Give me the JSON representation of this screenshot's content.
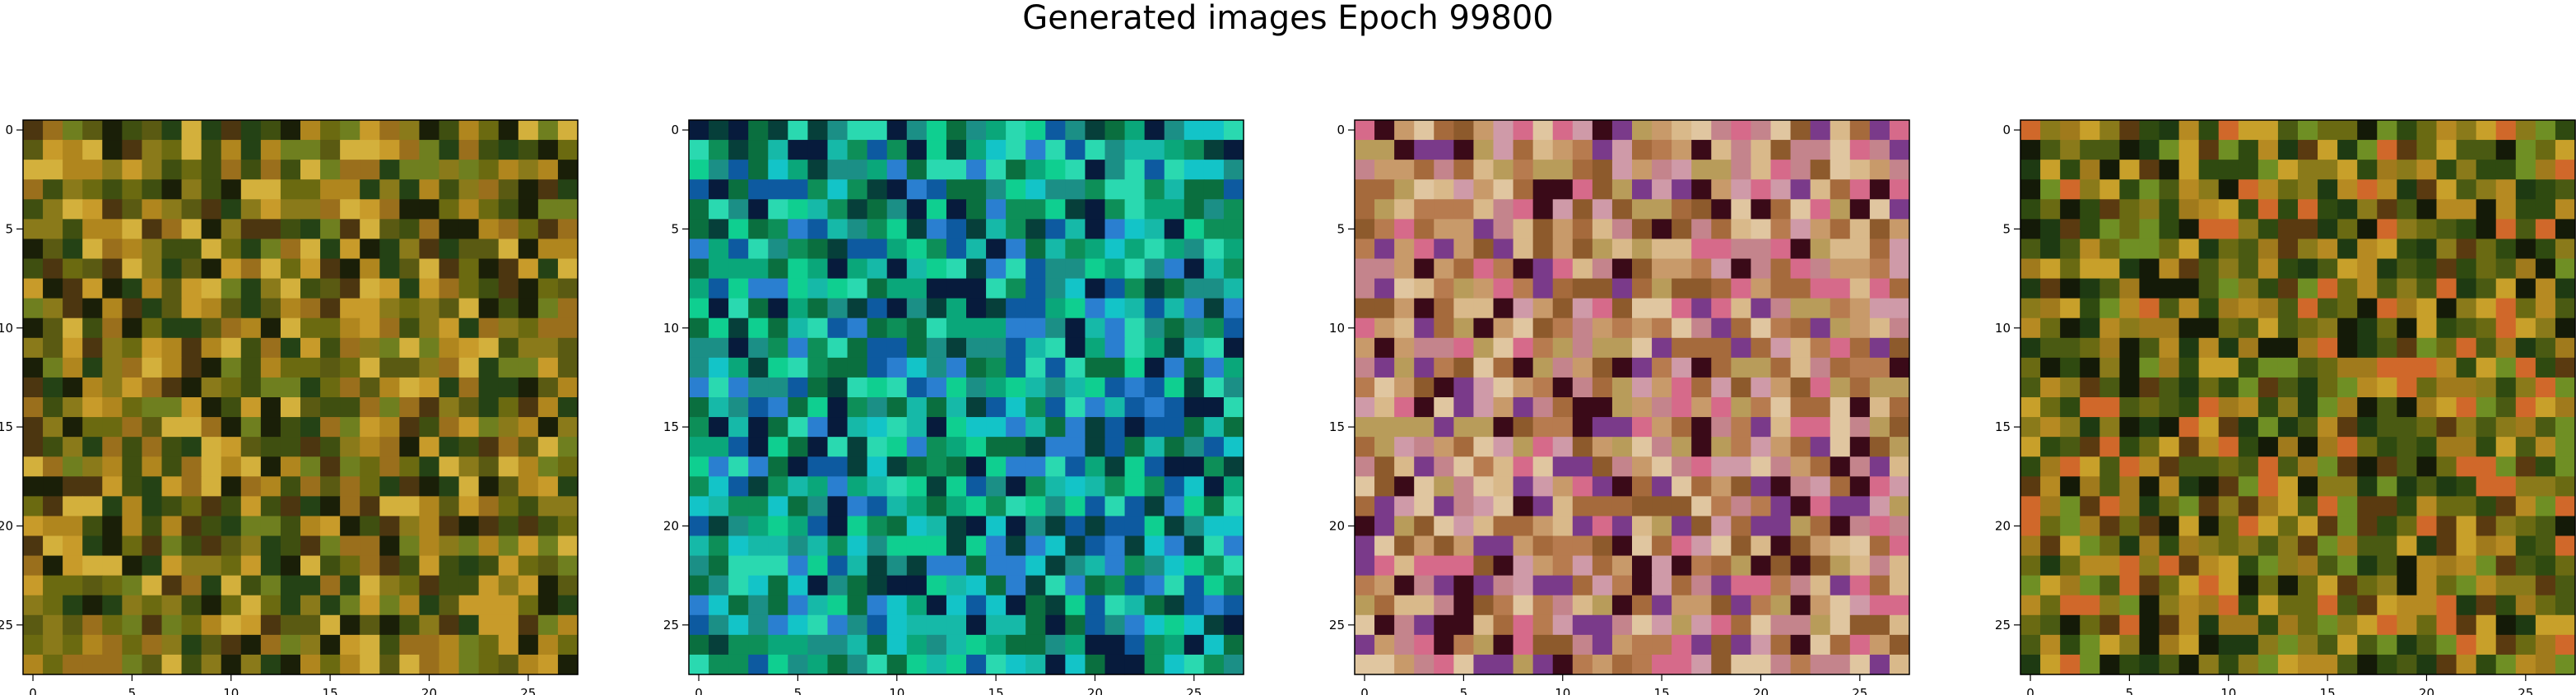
{
  "figure": {
    "title": "Generated images Epoch 99800"
  },
  "axes": {
    "xticks": [
      "0",
      "5",
      "10",
      "15",
      "20",
      "25"
    ],
    "yticks": [
      "0",
      "5",
      "10",
      "15",
      "20",
      "25"
    ]
  },
  "panels": [
    {
      "id": "sample-1",
      "palette": [
        "#6b6a10",
        "#8a7a1a",
        "#5a5a12",
        "#9a6f1c",
        "#3f4f10",
        "#b0861e",
        "#244215",
        "#6f7f1f",
        "#c89b2a",
        "#4c3610",
        "#1a1f08",
        "#d3b03c"
      ]
    },
    {
      "id": "sample-2",
      "palette": [
        "#0aa77a",
        "#0fcf90",
        "#0d8f58",
        "#16b9a8",
        "#0a6f3f",
        "#2ad9b0",
        "#1b8f86",
        "#063f3a",
        "#13c4c8",
        "#0d5aa0",
        "#071b3c",
        "#2a7fd0"
      ]
    },
    {
      "id": "sample-3",
      "palette": [
        "#c89a6a",
        "#b77b4f",
        "#d9b98a",
        "#c4848c",
        "#a56a3c",
        "#e0c6a0",
        "#cf9aa8",
        "#8d5a2c",
        "#b89c5a",
        "#7a3a8a",
        "#3a0a18",
        "#d66a8a"
      ]
    },
    {
      "id": "sample-4",
      "palette": [
        "#6a6a12",
        "#8a7a1a",
        "#4a5a12",
        "#a07a1c",
        "#2f4a10",
        "#b68a22",
        "#1e3a12",
        "#c8a02a",
        "#5a3a10",
        "#6f8f24",
        "#141a08",
        "#d0682a"
      ]
    }
  ]
}
